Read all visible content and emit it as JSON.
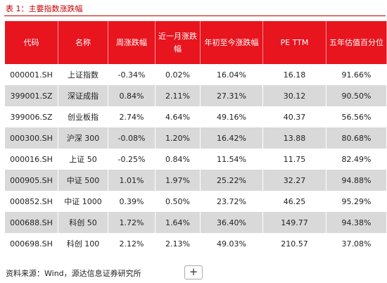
{
  "caption": "表 1：主要指数涨跌幅",
  "source_note": "资料来源：Wind，源达信息证券研究所",
  "expand_button": {
    "icon": "plus-icon",
    "glyph": "+"
  },
  "colors": {
    "header_bg": "#e8141e",
    "header_text": "#ffffff",
    "stripe": "#d9d9d9",
    "caption": "#c00000"
  },
  "chart_data": {
    "type": "table",
    "title": "表 1：主要指数涨跌幅",
    "columns": [
      "代码",
      "名称",
      "周涨跌幅",
      "近一月涨跌幅",
      "年初至今涨跌幅",
      "PE TTM",
      "五年估值百分位"
    ],
    "rows": [
      [
        "000001.SH",
        "上证指数",
        "-0.34%",
        "0.02%",
        "16.04%",
        "16.18",
        "91.66%"
      ],
      [
        "399001.SZ",
        "深证成指",
        "0.84%",
        "2.11%",
        "27.31%",
        "30.12",
        "90.50%"
      ],
      [
        "399006.SZ",
        "创业板指",
        "2.74%",
        "4.64%",
        "49.16%",
        "40.37",
        "56.56%"
      ],
      [
        "000300.SH",
        "沪深 300",
        "-0.08%",
        "1.20%",
        "16.42%",
        "13.88",
        "80.68%"
      ],
      [
        "000016.SH",
        "上证 50",
        "-0.25%",
        "0.84%",
        "11.54%",
        "11.75",
        "82.49%"
      ],
      [
        "000905.SH",
        "中证 500",
        "1.01%",
        "1.97%",
        "25.22%",
        "32.27",
        "94.88%"
      ],
      [
        "000852.SH",
        "中证 1000",
        "0.39%",
        "0.50%",
        "23.72%",
        "46.25",
        "95.29%"
      ],
      [
        "000688.SH",
        "科创 50",
        "1.72%",
        "1.64%",
        "36.40%",
        "149.77",
        "94.38%"
      ],
      [
        "000698.SH",
        "科创 100",
        "2.12%",
        "2.13%",
        "49.03%",
        "210.57",
        "37.08%"
      ]
    ]
  }
}
